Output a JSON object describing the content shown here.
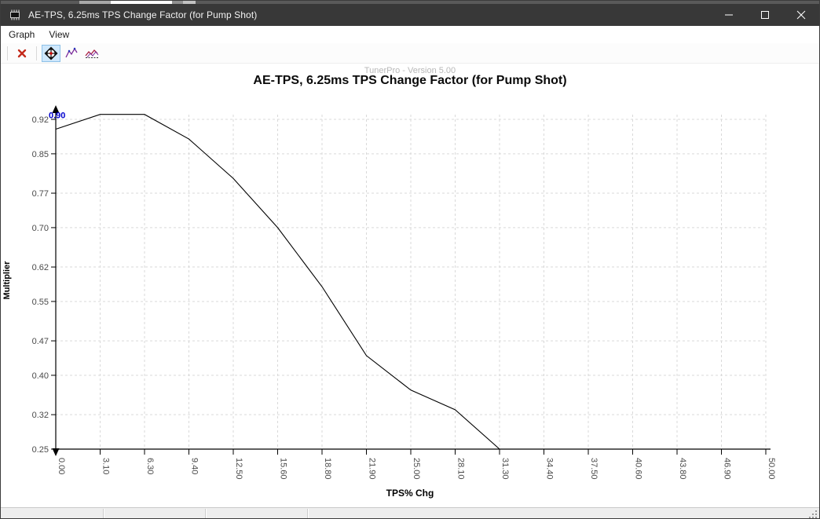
{
  "window": {
    "title": "AE-TPS, 6.25ms TPS Change Factor (for Pump Shot)"
  },
  "menu": {
    "items": [
      {
        "label": "Graph"
      },
      {
        "label": "View"
      }
    ]
  },
  "toolbar": {
    "buttons": [
      {
        "name": "close-graph",
        "icon": "red-x-icon"
      },
      {
        "name": "trace-cursor",
        "icon": "crosshair-diamond-icon",
        "selected": true
      },
      {
        "name": "graph-2d",
        "icon": "line-graph-icon"
      },
      {
        "name": "graph-3d",
        "icon": "area-graph-icon"
      }
    ]
  },
  "watermark": "TunerPro - Version 5.00",
  "chart_data": {
    "type": "line",
    "title": "AE-TPS, 6.25ms TPS Change Factor (for Pump Shot)",
    "xlabel": "TPS% Chg",
    "ylabel": "Multiplier",
    "x_tick_labels": [
      "0.00",
      "3.10",
      "6.30",
      "9.40",
      "12.50",
      "15.60",
      "18.80",
      "21.90",
      "25.00",
      "28.10",
      "31.30",
      "34.40",
      "37.50",
      "40.60",
      "43.80",
      "46.90",
      "50.00"
    ],
    "x": [
      0.0,
      3.1,
      6.3,
      9.4,
      12.5,
      15.6,
      18.8,
      21.9,
      25.0,
      28.1,
      31.3,
      34.4,
      37.5,
      40.6,
      43.8,
      46.9,
      50.0
    ],
    "values": [
      0.9,
      0.93,
      0.93,
      0.88,
      0.8,
      0.7,
      0.58,
      0.44,
      0.37,
      0.33,
      0.25,
      0.25,
      0.25,
      0.25,
      0.25,
      0.25,
      0.25
    ],
    "y_tick_labels": [
      "0.92",
      "0.85",
      "0.77",
      "0.70",
      "0.62",
      "0.55",
      "0.47",
      "0.40",
      "0.32",
      "0.25"
    ],
    "y_tick_values": [
      0.92,
      0.85,
      0.77,
      0.7,
      0.62,
      0.55,
      0.47,
      0.4,
      0.32,
      0.25
    ],
    "ylim": [
      0.25,
      0.92
    ],
    "xlim": [
      0,
      50
    ],
    "grid": true,
    "legend": false,
    "point_label": {
      "text": "0.90",
      "index": 0
    }
  },
  "colors": {
    "titlebar": "#383838",
    "line": "#000000",
    "grid": "#d9d9d9",
    "tick_text": "#4a4a4a",
    "point_label": "#0000cd",
    "toolbar_red": "#c42b1c",
    "selected_bg": "#cfe8fc"
  }
}
